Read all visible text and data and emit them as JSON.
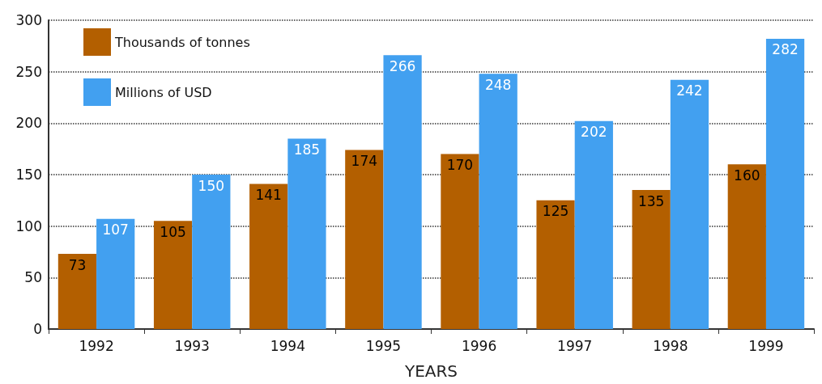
{
  "chart_data": {
    "type": "bar",
    "xlabel": "YEARS",
    "categories": [
      "1992",
      "1993",
      "1994",
      "1995",
      "1996",
      "1997",
      "1998",
      "1999"
    ],
    "series": [
      {
        "name": "Thousands of tonnes",
        "color": "#b35f00",
        "values": [
          73,
          105,
          141,
          174,
          170,
          125,
          135,
          160
        ]
      },
      {
        "name": "Millions of USD",
        "color": "#42a0f0",
        "values": [
          107,
          150,
          185,
          266,
          248,
          202,
          242,
          282
        ]
      }
    ],
    "ylim": [
      0,
      300
    ],
    "yticks": [
      0,
      50,
      100,
      150,
      200,
      250,
      300
    ],
    "grid": "y",
    "legend": "top left",
    "data_labels": true
  }
}
